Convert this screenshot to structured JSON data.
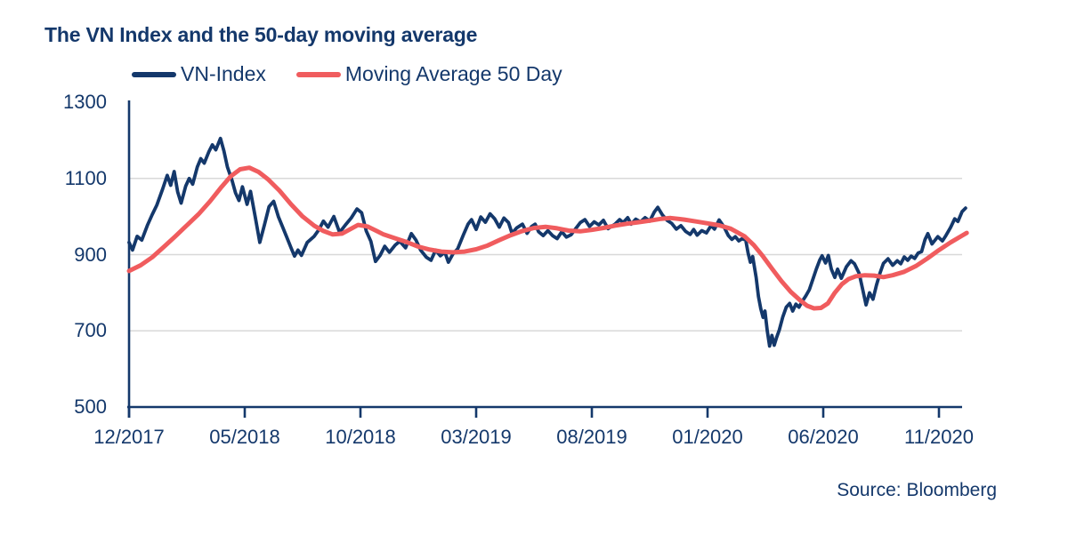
{
  "title": "The VN Index and the 50-day moving average",
  "source": "Source: Bloomberg",
  "colors": {
    "text": "#14386b",
    "axis": "#14386b",
    "grid": "#d8d8d8",
    "background": "#ffffff",
    "vn_index": "#14386b",
    "moving_average": "#f05c5e"
  },
  "legend": [
    {
      "label": "VN-Index",
      "color": "#14386b"
    },
    {
      "label": "Moving Average 50 Day",
      "color": "#f05c5e"
    }
  ],
  "chart_data": {
    "type": "line",
    "title": "The VN Index and the 50-day moving average",
    "xlabel": "",
    "ylabel": "",
    "x_unit": "months since 2017-12",
    "xlim": [
      0,
      36.3
    ],
    "ylim": [
      500,
      1300
    ],
    "grid": "horizontal",
    "grid_values": [
      700,
      900,
      1100
    ],
    "y_ticks": [
      1300,
      1100,
      900,
      700,
      500
    ],
    "x_ticks": [
      {
        "m": 0,
        "label": "12/2017"
      },
      {
        "m": 5,
        "label": "05/2018"
      },
      {
        "m": 10,
        "label": "10/2018"
      },
      {
        "m": 15,
        "label": "03/2019"
      },
      {
        "m": 20,
        "label": "08/2019"
      },
      {
        "m": 25,
        "label": "01/2020"
      },
      {
        "m": 30,
        "label": "06/2020"
      },
      {
        "m": 35,
        "label": "11/2020"
      }
    ],
    "legend_position": "top",
    "series": [
      {
        "name": "VN-Index",
        "color": "#14386b",
        "width": 3.8,
        "points": [
          [
            0,
            932
          ],
          [
            0.15,
            912
          ],
          [
            0.35,
            948
          ],
          [
            0.55,
            938
          ],
          [
            0.8,
            978
          ],
          [
            1.0,
            1005
          ],
          [
            1.2,
            1030
          ],
          [
            1.45,
            1072
          ],
          [
            1.65,
            1108
          ],
          [
            1.8,
            1082
          ],
          [
            1.95,
            1118
          ],
          [
            2.1,
            1065
          ],
          [
            2.25,
            1035
          ],
          [
            2.45,
            1080
          ],
          [
            2.6,
            1100
          ],
          [
            2.75,
            1085
          ],
          [
            2.95,
            1130
          ],
          [
            3.1,
            1152
          ],
          [
            3.25,
            1140
          ],
          [
            3.45,
            1170
          ],
          [
            3.6,
            1188
          ],
          [
            3.75,
            1175
          ],
          [
            3.95,
            1205
          ],
          [
            4.1,
            1172
          ],
          [
            4.25,
            1130
          ],
          [
            4.45,
            1095
          ],
          [
            4.6,
            1062
          ],
          [
            4.75,
            1042
          ],
          [
            4.9,
            1078
          ],
          [
            5.1,
            1032
          ],
          [
            5.25,
            1066
          ],
          [
            5.45,
            1000
          ],
          [
            5.65,
            932
          ],
          [
            5.85,
            978
          ],
          [
            6.05,
            1026
          ],
          [
            6.25,
            1040
          ],
          [
            6.45,
            1000
          ],
          [
            6.6,
            978
          ],
          [
            6.8,
            948
          ],
          [
            7.0,
            918
          ],
          [
            7.15,
            896
          ],
          [
            7.3,
            912
          ],
          [
            7.45,
            898
          ],
          [
            7.7,
            932
          ],
          [
            8.0,
            948
          ],
          [
            8.2,
            965
          ],
          [
            8.4,
            988
          ],
          [
            8.6,
            972
          ],
          [
            8.85,
            1000
          ],
          [
            9.1,
            958
          ],
          [
            9.35,
            978
          ],
          [
            9.6,
            996
          ],
          [
            9.85,
            1020
          ],
          [
            10.05,
            1010
          ],
          [
            10.25,
            962
          ],
          [
            10.45,
            935
          ],
          [
            10.65,
            882
          ],
          [
            10.85,
            898
          ],
          [
            11.05,
            922
          ],
          [
            11.25,
            906
          ],
          [
            11.5,
            925
          ],
          [
            11.7,
            935
          ],
          [
            11.95,
            918
          ],
          [
            12.2,
            955
          ],
          [
            12.4,
            938
          ],
          [
            12.6,
            912
          ],
          [
            12.85,
            893
          ],
          [
            13.05,
            885
          ],
          [
            13.25,
            912
          ],
          [
            13.45,
            897
          ],
          [
            13.65,
            906
          ],
          [
            13.8,
            880
          ],
          [
            14.0,
            902
          ],
          [
            14.2,
            915
          ],
          [
            14.45,
            952
          ],
          [
            14.65,
            980
          ],
          [
            14.8,
            992
          ],
          [
            15.0,
            966
          ],
          [
            15.2,
            999
          ],
          [
            15.4,
            985
          ],
          [
            15.6,
            1007
          ],
          [
            15.8,
            994
          ],
          [
            16.0,
            972
          ],
          [
            16.2,
            996
          ],
          [
            16.4,
            984
          ],
          [
            16.55,
            956
          ],
          [
            16.75,
            970
          ],
          [
            17.0,
            980
          ],
          [
            17.2,
            956
          ],
          [
            17.4,
            974
          ],
          [
            17.55,
            980
          ],
          [
            17.7,
            960
          ],
          [
            17.9,
            950
          ],
          [
            18.1,
            963
          ],
          [
            18.3,
            950
          ],
          [
            18.5,
            942
          ],
          [
            18.7,
            960
          ],
          [
            18.9,
            946
          ],
          [
            19.1,
            952
          ],
          [
            19.3,
            968
          ],
          [
            19.5,
            984
          ],
          [
            19.7,
            992
          ],
          [
            19.9,
            974
          ],
          [
            20.1,
            986
          ],
          [
            20.3,
            978
          ],
          [
            20.5,
            990
          ],
          [
            20.7,
            968
          ],
          [
            21.0,
            980
          ],
          [
            21.2,
            992
          ],
          [
            21.35,
            984
          ],
          [
            21.55,
            997
          ],
          [
            21.7,
            980
          ],
          [
            21.9,
            993
          ],
          [
            22.1,
            986
          ],
          [
            22.3,
            997
          ],
          [
            22.5,
            988
          ],
          [
            22.7,
            1012
          ],
          [
            22.85,
            1024
          ],
          [
            23.05,
            1004
          ],
          [
            23.25,
            990
          ],
          [
            23.45,
            982
          ],
          [
            23.65,
            967
          ],
          [
            23.85,
            976
          ],
          [
            24.05,
            961
          ],
          [
            24.25,
            953
          ],
          [
            24.4,
            966
          ],
          [
            24.55,
            951
          ],
          [
            24.75,
            963
          ],
          [
            24.95,
            957
          ],
          [
            25.15,
            976
          ],
          [
            25.3,
            967
          ],
          [
            25.5,
            991
          ],
          [
            25.7,
            974
          ],
          [
            25.9,
            950
          ],
          [
            26.05,
            940
          ],
          [
            26.2,
            947
          ],
          [
            26.35,
            936
          ],
          [
            26.5,
            942
          ],
          [
            26.65,
            938
          ],
          [
            26.75,
            905
          ],
          [
            26.85,
            880
          ],
          [
            26.95,
            895
          ],
          [
            27.1,
            840
          ],
          [
            27.2,
            790
          ],
          [
            27.3,
            758
          ],
          [
            27.4,
            735
          ],
          [
            27.48,
            752
          ],
          [
            27.58,
            700
          ],
          [
            27.68,
            660
          ],
          [
            27.78,
            688
          ],
          [
            27.88,
            662
          ],
          [
            27.98,
            682
          ],
          [
            28.1,
            702
          ],
          [
            28.25,
            736
          ],
          [
            28.4,
            762
          ],
          [
            28.55,
            772
          ],
          [
            28.68,
            752
          ],
          [
            28.82,
            770
          ],
          [
            28.95,
            762
          ],
          [
            29.1,
            778
          ],
          [
            29.25,
            792
          ],
          [
            29.4,
            808
          ],
          [
            29.55,
            835
          ],
          [
            29.7,
            862
          ],
          [
            29.85,
            886
          ],
          [
            29.95,
            897
          ],
          [
            30.1,
            878
          ],
          [
            30.22,
            898
          ],
          [
            30.35,
            862
          ],
          [
            30.5,
            840
          ],
          [
            30.62,
            862
          ],
          [
            30.78,
            838
          ],
          [
            31.0,
            868
          ],
          [
            31.2,
            884
          ],
          [
            31.35,
            876
          ],
          [
            31.55,
            851
          ],
          [
            31.7,
            810
          ],
          [
            31.85,
            768
          ],
          [
            32.0,
            800
          ],
          [
            32.15,
            783
          ],
          [
            32.3,
            820
          ],
          [
            32.45,
            851
          ],
          [
            32.6,
            877
          ],
          [
            32.8,
            889
          ],
          [
            33.0,
            872
          ],
          [
            33.2,
            884
          ],
          [
            33.35,
            876
          ],
          [
            33.5,
            894
          ],
          [
            33.65,
            885
          ],
          [
            33.8,
            896
          ],
          [
            33.95,
            890
          ],
          [
            34.1,
            904
          ],
          [
            34.25,
            908
          ],
          [
            34.4,
            940
          ],
          [
            34.52,
            955
          ],
          [
            34.7,
            928
          ],
          [
            34.95,
            947
          ],
          [
            35.15,
            936
          ],
          [
            35.3,
            950
          ],
          [
            35.5,
            971
          ],
          [
            35.68,
            994
          ],
          [
            35.82,
            987
          ],
          [
            36.0,
            1013
          ],
          [
            36.15,
            1022
          ]
        ]
      },
      {
        "name": "Moving Average 50 Day",
        "color": "#f05c5e",
        "width": 5,
        "points": [
          [
            0,
            857
          ],
          [
            0.5,
            872
          ],
          [
            1,
            893
          ],
          [
            1.5,
            920
          ],
          [
            2,
            948
          ],
          [
            2.5,
            977
          ],
          [
            3,
            1006
          ],
          [
            3.5,
            1040
          ],
          [
            4,
            1078
          ],
          [
            4.4,
            1106
          ],
          [
            4.8,
            1124
          ],
          [
            5.2,
            1128
          ],
          [
            5.6,
            1117
          ],
          [
            6,
            1098
          ],
          [
            6.5,
            1068
          ],
          [
            7,
            1032
          ],
          [
            7.5,
            1000
          ],
          [
            8,
            976
          ],
          [
            8.4,
            962
          ],
          [
            8.8,
            953
          ],
          [
            9.2,
            955
          ],
          [
            9.6,
            968
          ],
          [
            9.9,
            978
          ],
          [
            10.3,
            974
          ],
          [
            10.7,
            962
          ],
          [
            11,
            953
          ],
          [
            11.5,
            943
          ],
          [
            12,
            933
          ],
          [
            12.5,
            921
          ],
          [
            13,
            913
          ],
          [
            13.5,
            908
          ],
          [
            14,
            906
          ],
          [
            14.5,
            908
          ],
          [
            15,
            914
          ],
          [
            15.5,
            924
          ],
          [
            16,
            938
          ],
          [
            16.5,
            951
          ],
          [
            17,
            962
          ],
          [
            17.5,
            970
          ],
          [
            18,
            973
          ],
          [
            18.5,
            969
          ],
          [
            19,
            963
          ],
          [
            19.5,
            961
          ],
          [
            20,
            965
          ],
          [
            20.5,
            970
          ],
          [
            21,
            976
          ],
          [
            21.5,
            981
          ],
          [
            22,
            985
          ],
          [
            22.5,
            989
          ],
          [
            23,
            994
          ],
          [
            23.4,
            996
          ],
          [
            24,
            992
          ],
          [
            24.5,
            987
          ],
          [
            25,
            982
          ],
          [
            25.5,
            977
          ],
          [
            26,
            968
          ],
          [
            26.6,
            948
          ],
          [
            27,
            925
          ],
          [
            27.4,
            895
          ],
          [
            27.8,
            862
          ],
          [
            28.2,
            830
          ],
          [
            28.6,
            802
          ],
          [
            29,
            780
          ],
          [
            29.3,
            766
          ],
          [
            29.6,
            759
          ],
          [
            29.9,
            760
          ],
          [
            30.2,
            772
          ],
          [
            30.5,
            800
          ],
          [
            30.8,
            822
          ],
          [
            31.1,
            836
          ],
          [
            31.4,
            843
          ],
          [
            31.8,
            846
          ],
          [
            32.2,
            845
          ],
          [
            32.6,
            841
          ],
          [
            33.0,
            846
          ],
          [
            33.5,
            855
          ],
          [
            34.0,
            870
          ],
          [
            34.5,
            890
          ],
          [
            35.0,
            912
          ],
          [
            35.5,
            932
          ],
          [
            36.0,
            950
          ],
          [
            36.2,
            957
          ]
        ]
      }
    ]
  }
}
